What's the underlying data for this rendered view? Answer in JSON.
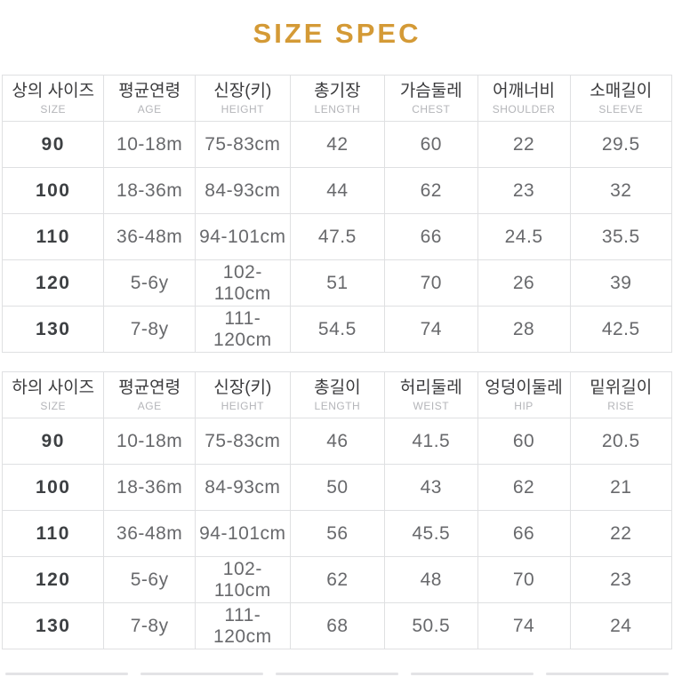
{
  "title": "SIZE SPEC",
  "accent_color": "#d49a36",
  "border_color": "#dfe0e2",
  "chart_data": [
    {
      "type": "table",
      "name": "tops-size-spec",
      "columns": [
        {
          "ko": "상의 사이즈",
          "en": "SIZE"
        },
        {
          "ko": "평균연령",
          "en": "AGE"
        },
        {
          "ko": "신장(키)",
          "en": "HEIGHT"
        },
        {
          "ko": "총기장",
          "en": "LENGTH"
        },
        {
          "ko": "가슴둘레",
          "en": "CHEST"
        },
        {
          "ko": "어깨너비",
          "en": "SHOULDER"
        },
        {
          "ko": "소매길이",
          "en": "SLEEVE"
        }
      ],
      "rows": [
        [
          "90",
          "10-18m",
          "75-83cm",
          "42",
          "60",
          "22",
          "29.5"
        ],
        [
          "100",
          "18-36m",
          "84-93cm",
          "44",
          "62",
          "23",
          "32"
        ],
        [
          "110",
          "36-48m",
          "94-101cm",
          "47.5",
          "66",
          "24.5",
          "35.5"
        ],
        [
          "120",
          "5-6y",
          "102-110cm",
          "51",
          "70",
          "26",
          "39"
        ],
        [
          "130",
          "7-8y",
          "111-120cm",
          "54.5",
          "74",
          "28",
          "42.5"
        ]
      ]
    },
    {
      "type": "table",
      "name": "bottoms-size-spec",
      "columns": [
        {
          "ko": "하의 사이즈",
          "en": "SIZE"
        },
        {
          "ko": "평균연령",
          "en": "AGE"
        },
        {
          "ko": "신장(키)",
          "en": "HEIGHT"
        },
        {
          "ko": "총길이",
          "en": "LENGTH"
        },
        {
          "ko": "허리둘레",
          "en": "WEIST"
        },
        {
          "ko": "엉덩이둘레",
          "en": "HIP"
        },
        {
          "ko": "밑위길이",
          "en": "RISE"
        }
      ],
      "rows": [
        [
          "90",
          "10-18m",
          "75-83cm",
          "46",
          "41.5",
          "60",
          "20.5"
        ],
        [
          "100",
          "18-36m",
          "84-93cm",
          "50",
          "43",
          "62",
          "21"
        ],
        [
          "110",
          "36-48m",
          "94-101cm",
          "56",
          "45.5",
          "66",
          "22"
        ],
        [
          "120",
          "5-6y",
          "102-110cm",
          "62",
          "48",
          "70",
          "23"
        ],
        [
          "130",
          "7-8y",
          "111-120cm",
          "68",
          "50.5",
          "74",
          "24"
        ]
      ]
    }
  ]
}
